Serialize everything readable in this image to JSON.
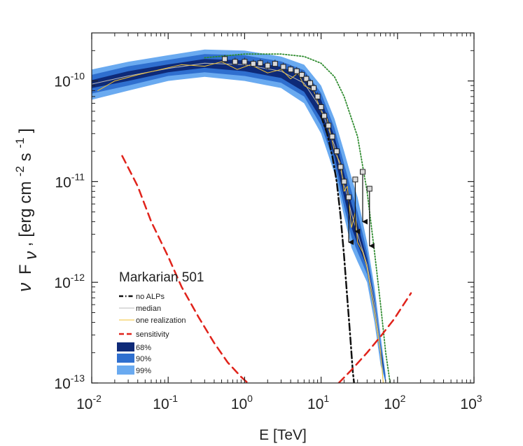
{
  "chart_data": {
    "type": "line",
    "title": "Markarian 501",
    "xlabel": "E [TeV]",
    "ylabel_parts": [
      "ν",
      "F",
      "ν",
      ", [erg cm",
      "-2",
      " s",
      "-1",
      "]"
    ],
    "xscale": "log",
    "yscale": "log",
    "xlim": [
      0.01,
      1000
    ],
    "ylim": [
      1e-13,
      3e-10
    ],
    "x_ticks": [
      {
        "value": 0.01,
        "base": "10",
        "exp": "-2"
      },
      {
        "value": 0.1,
        "base": "10",
        "exp": "-1"
      },
      {
        "value": 1,
        "base": "10",
        "exp": "0"
      },
      {
        "value": 10,
        "base": "10",
        "exp": "1"
      },
      {
        "value": 100,
        "base": "10",
        "exp": "2"
      },
      {
        "value": 1000,
        "base": "10",
        "exp": "3"
      }
    ],
    "y_ticks": [
      {
        "value": 1e-10,
        "base": "10",
        "exp": "-10"
      },
      {
        "value": 1e-11,
        "base": "10",
        "exp": "-11"
      },
      {
        "value": 1e-12,
        "base": "10",
        "exp": "-12"
      },
      {
        "value": 1e-13,
        "base": "10",
        "exp": "-13"
      }
    ],
    "legend": {
      "position": "bottom-left",
      "entries": [
        {
          "label": "no ALPs",
          "style": "dashdot",
          "color": "#111111"
        },
        {
          "label": "median",
          "style": "solid-thin",
          "color": "#b9b9b9"
        },
        {
          "label": "one realization",
          "style": "solid-thin",
          "color": "#f2c230"
        },
        {
          "label": "sensitivity",
          "style": "dashed",
          "color": "#e0231b"
        },
        {
          "label": "68%",
          "style": "patch",
          "color": "#0e2a78"
        },
        {
          "label": "90%",
          "style": "patch",
          "color": "#2f6fcf"
        },
        {
          "label": "99%",
          "style": "patch",
          "color": "#6aaaf0"
        }
      ]
    },
    "bands": [
      {
        "name": "99%",
        "color": "#6aaaf0",
        "x": [
          0.01,
          0.03,
          0.1,
          0.3,
          1,
          3,
          6,
          10,
          15,
          20,
          25,
          30,
          40,
          50,
          60,
          70
        ],
        "lo": [
          6.5e-11,
          8e-11,
          1e-10,
          1.1e-10,
          1e-10,
          8.5e-11,
          6e-11,
          3e-11,
          1.2e-11,
          4.5e-12,
          2.2e-12,
          1.6e-12,
          1e-12,
          4e-13,
          1.5e-13,
          1e-13
        ],
        "hi": [
          1.3e-10,
          1.55e-10,
          1.8e-10,
          2.05e-10,
          2e-10,
          1.75e-10,
          1.45e-10,
          9e-11,
          4.2e-11,
          2e-11,
          1.1e-11,
          7e-12,
          2.5e-12,
          9e-13,
          3e-13,
          1.2e-13
        ]
      },
      {
        "name": "90%",
        "color": "#2f6fcf",
        "x": [
          0.01,
          0.03,
          0.1,
          0.3,
          1,
          3,
          6,
          10,
          15,
          20,
          25,
          30,
          40,
          50,
          60,
          70
        ],
        "lo": [
          7.5e-11,
          9e-11,
          1.12e-10,
          1.22e-10,
          1.12e-10,
          9.6e-11,
          7e-11,
          3.6e-11,
          1.5e-11,
          5.6e-12,
          2.8e-12,
          2e-12,
          1.2e-12,
          5e-13,
          1.8e-13,
          1e-13
        ],
        "hi": [
          1.15e-10,
          1.4e-10,
          1.62e-10,
          1.85e-10,
          1.8e-10,
          1.56e-10,
          1.28e-10,
          7.6e-11,
          3.4e-11,
          1.5e-11,
          8e-12,
          5e-12,
          2e-12,
          7.5e-13,
          2.5e-13,
          1.1e-13
        ]
      },
      {
        "name": "68%",
        "color": "#0e2a78",
        "x": [
          0.01,
          0.03,
          0.1,
          0.3,
          1,
          3,
          6,
          10,
          15,
          20,
          25,
          30,
          40,
          50,
          60,
          70
        ],
        "lo": [
          8.5e-11,
          1e-10,
          1.22e-10,
          1.35e-10,
          1.25e-10,
          1.07e-10,
          7.8e-11,
          4.2e-11,
          1.8e-11,
          7e-12,
          3.5e-12,
          2.4e-12,
          1.4e-12,
          5.5e-13,
          2e-13,
          1.05e-13
        ],
        "hi": [
          1.02e-10,
          1.25e-10,
          1.46e-10,
          1.65e-10,
          1.6e-10,
          1.38e-10,
          1.12e-10,
          6.5e-11,
          2.8e-11,
          1.2e-11,
          6e-12,
          3.8e-12,
          1.7e-12,
          6.5e-13,
          2.3e-13,
          1.05e-13
        ]
      }
    ],
    "series": [
      {
        "name": "green dotted model",
        "style": "dotted",
        "color": "#2e8b2e",
        "x": [
          0.3,
          1,
          3,
          6,
          10,
          15,
          20,
          30,
          40,
          50,
          60,
          70,
          80
        ],
        "y": [
          1.7e-10,
          1.85e-10,
          1.85e-10,
          1.75e-10,
          1.5e-10,
          1.1e-10,
          7e-11,
          2.8e-11,
          8e-12,
          2e-12,
          6e-13,
          2e-13,
          1e-13
        ]
      },
      {
        "name": "median",
        "style": "solid-thin",
        "color": "#b9b9b9",
        "x": [
          0.01,
          0.03,
          0.1,
          0.3,
          1,
          3,
          6,
          10,
          15,
          20,
          25,
          30,
          40,
          50,
          60,
          65
        ],
        "y": [
          9.3e-11,
          1.12e-10,
          1.33e-10,
          1.5e-10,
          1.45e-10,
          1.25e-10,
          9.5e-11,
          5.3e-11,
          2.3e-11,
          9.5e-12,
          4.8e-12,
          3e-12,
          1.5e-12,
          6e-13,
          2.1e-13,
          1e-13
        ]
      },
      {
        "name": "one realization",
        "style": "solid-thin",
        "color": "#f2c230",
        "x": [
          0.012,
          0.02,
          0.04,
          0.08,
          0.15,
          0.3,
          0.5,
          0.8,
          1.2,
          2,
          3,
          4,
          5,
          6,
          8,
          10,
          12,
          15,
          18,
          20,
          22,
          25,
          28,
          30,
          35,
          40,
          50,
          60,
          65
        ],
        "y": [
          8e-11,
          1e-10,
          1.15e-10,
          1.3e-10,
          1.45e-10,
          1.4e-10,
          1.55e-10,
          1.3e-10,
          1.45e-10,
          1.2e-10,
          1.3e-10,
          1.05e-10,
          1.2e-10,
          9e-11,
          8e-11,
          5e-11,
          4.2e-11,
          2e-11,
          1.5e-11,
          8e-12,
          9e-12,
          3.5e-12,
          5e-12,
          2.5e-12,
          2e-12,
          1.4e-12,
          5e-13,
          2e-13,
          1e-13
        ]
      },
      {
        "name": "no ALPs",
        "style": "dashdot",
        "color": "#111111",
        "x": [
          10,
          12,
          14,
          16,
          18,
          20,
          22,
          24,
          26,
          27
        ],
        "y": [
          4.5e-11,
          3e-11,
          1.8e-11,
          1e-11,
          4.5e-12,
          1.8e-12,
          7e-13,
          3e-13,
          1.3e-13,
          1e-13
        ]
      },
      {
        "name": "sensitivity low",
        "style": "dashed",
        "color": "#e0231b",
        "x": [
          0.025,
          0.04,
          0.06,
          0.1,
          0.15,
          0.25,
          0.4,
          0.6,
          0.9,
          1.1
        ],
        "y": [
          1.8e-11,
          9e-12,
          4e-12,
          1.8e-12,
          9e-13,
          4.5e-13,
          2.5e-13,
          1.6e-13,
          1.15e-13,
          1e-13
        ]
      },
      {
        "name": "sensitivity high",
        "style": "dashed",
        "color": "#e0231b",
        "x": [
          17,
          25,
          40,
          60,
          90,
          150
        ],
        "y": [
          1e-13,
          1.35e-13,
          2e-13,
          2.9e-13,
          4.3e-13,
          7.8e-13
        ]
      }
    ],
    "data_points": {
      "x": [
        0.55,
        0.75,
        1.0,
        1.3,
        1.6,
        2.0,
        2.5,
        3.2,
        4.0,
        4.8,
        5.6,
        6.4,
        7.2,
        8.0,
        9.0,
        10.0,
        11.0,
        12.5,
        14.0,
        16.0,
        18.0,
        20.0
      ],
      "y": [
        1.65e-10,
        1.55e-10,
        1.55e-10,
        1.48e-10,
        1.5e-10,
        1.42e-10,
        1.48e-10,
        1.38e-10,
        1.3e-10,
        1.25e-10,
        1.15e-10,
        1.05e-10,
        9.5e-11,
        8.5e-11,
        7e-11,
        5.5e-11,
        4.5e-11,
        3.6e-11,
        2.8e-11,
        2e-11,
        1.4e-11,
        1e-11
      ]
    },
    "upper_limits": {
      "x": [
        23,
        28,
        35,
        43
      ],
      "y": [
        7e-12,
        1.05e-11,
        1.25e-11,
        8.5e-12
      ],
      "arrow_to": [
        2.5e-12,
        3.2e-12,
        4e-12,
        2.3e-12
      ]
    }
  }
}
